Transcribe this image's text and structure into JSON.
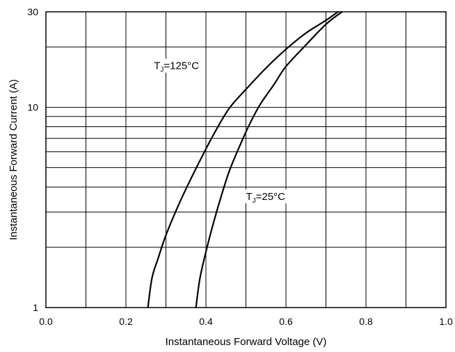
{
  "chart_data": {
    "type": "line",
    "title": "",
    "xlabel": "Instantaneous Forward Voltage (V)",
    "ylabel": "Instantaneous Forward Current (A)",
    "xlim": [
      0.0,
      1.0
    ],
    "ylim": [
      1,
      30
    ],
    "yscale": "log",
    "grid": true,
    "x_ticks": [
      0.0,
      0.1,
      0.2,
      0.3,
      0.4,
      0.5,
      0.6,
      0.7,
      0.8,
      0.9,
      1.0
    ],
    "x_tick_labels": [
      "0.0",
      "0.2",
      "0.4",
      "0.6",
      "0.8",
      "1.0"
    ],
    "x_tick_label_values": [
      0.0,
      0.2,
      0.4,
      0.6,
      0.8,
      1.0
    ],
    "y_grid": [
      1,
      2,
      3,
      4,
      5,
      6,
      7,
      8,
      9,
      10,
      20,
      30
    ],
    "y_tick_labels": [
      "1",
      "10",
      "30"
    ],
    "y_tick_label_values": [
      1,
      10,
      30
    ],
    "series": [
      {
        "name": "TJ=125°C",
        "label_main": "T",
        "label_sub": "J",
        "label_rest": "=125°C",
        "label_anchor": [
          0.27,
          15.5
        ],
        "points": [
          [
            0.255,
            1
          ],
          [
            0.265,
            1.4
          ],
          [
            0.28,
            1.75
          ],
          [
            0.3,
            2.3
          ],
          [
            0.33,
            3.2
          ],
          [
            0.36,
            4.3
          ],
          [
            0.4,
            6.2
          ],
          [
            0.43,
            8.0
          ],
          [
            0.46,
            10.0
          ],
          [
            0.5,
            12.3
          ],
          [
            0.55,
            15.7
          ],
          [
            0.6,
            19.5
          ],
          [
            0.65,
            23.5
          ],
          [
            0.7,
            27.2
          ],
          [
            0.73,
            30
          ]
        ]
      },
      {
        "name": "TJ=25°C",
        "label_main": "T",
        "label_sub": "J",
        "label_rest": "=25°C",
        "label_anchor": [
          0.5,
          3.45
        ],
        "points": [
          [
            0.375,
            1
          ],
          [
            0.385,
            1.4
          ],
          [
            0.4,
            1.9
          ],
          [
            0.42,
            2.7
          ],
          [
            0.44,
            3.7
          ],
          [
            0.46,
            4.9
          ],
          [
            0.49,
            6.8
          ],
          [
            0.51,
            8.3
          ],
          [
            0.535,
            10.3
          ],
          [
            0.57,
            13.0
          ],
          [
            0.6,
            16.0
          ],
          [
            0.65,
            20.5
          ],
          [
            0.7,
            26.0
          ],
          [
            0.74,
            30
          ]
        ]
      }
    ]
  }
}
